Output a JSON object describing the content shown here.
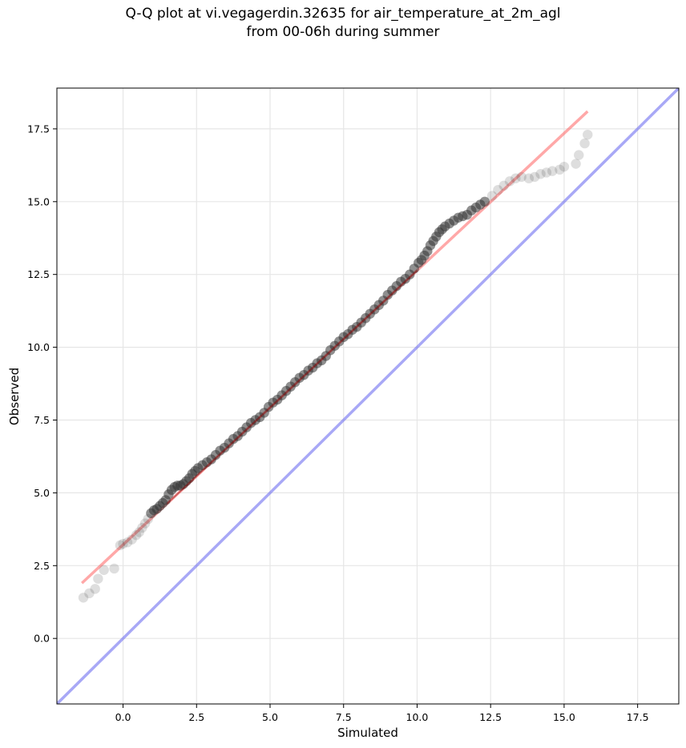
{
  "title_line1": "Q-Q plot at vi.vegagerdin.32635 for air_temperature_at_2m_agl",
  "title_line2": "from 00-06h during summer",
  "colors": {
    "points": "#333333",
    "fit_line": "#ff6060",
    "identity_line": "#6e6ef0",
    "fit_segment_dense": "#8b0000",
    "grid": "#e6e6e6"
  },
  "chart_data": {
    "type": "scatter",
    "xlabel": "Simulated",
    "ylabel": "Observed",
    "xlim": [
      -2.25,
      18.9
    ],
    "ylim": [
      -2.25,
      18.9
    ],
    "xticks": [
      0.0,
      2.5,
      5.0,
      7.5,
      10.0,
      12.5,
      15.0,
      17.5
    ],
    "yticks": [
      0.0,
      2.5,
      5.0,
      7.5,
      10.0,
      12.5,
      15.0,
      17.5
    ],
    "xtick_labels": [
      "0.0",
      "2.5",
      "5.0",
      "7.5",
      "10.0",
      "12.5",
      "15.0",
      "17.5"
    ],
    "ytick_labels": [
      "0.0",
      "2.5",
      "5.0",
      "7.5",
      "10.0",
      "12.5",
      "15.0",
      "17.5"
    ],
    "grid": true,
    "identity_line": {
      "x": [
        -2.25,
        18.9
      ],
      "y": [
        -2.25,
        18.9
      ]
    },
    "fit_line": {
      "x": [
        -1.4,
        15.8
      ],
      "y": [
        1.9,
        18.1
      ]
    },
    "points": {
      "x": [
        -1.35,
        -1.15,
        -0.95,
        -0.85,
        -0.65,
        -0.3,
        -0.1,
        0.0,
        0.15,
        0.3,
        0.45,
        0.55,
        0.65,
        0.75,
        0.85,
        0.95,
        1.05,
        1.15,
        1.25,
        1.35,
        1.45,
        1.55,
        1.65,
        1.75,
        1.85,
        1.95,
        2.05,
        2.15,
        2.25,
        2.35,
        2.45,
        2.55,
        2.7,
        2.85,
        3.0,
        3.15,
        3.3,
        3.45,
        3.6,
        3.75,
        3.9,
        4.05,
        4.2,
        4.35,
        4.5,
        4.65,
        4.8,
        4.95,
        5.1,
        5.25,
        5.4,
        5.55,
        5.7,
        5.85,
        6.0,
        6.15,
        6.3,
        6.45,
        6.6,
        6.75,
        6.9,
        7.05,
        7.2,
        7.35,
        7.5,
        7.65,
        7.8,
        7.95,
        8.1,
        8.25,
        8.4,
        8.55,
        8.7,
        8.85,
        9.0,
        9.15,
        9.3,
        9.45,
        9.6,
        9.75,
        9.9,
        10.05,
        10.15,
        10.25,
        10.35,
        10.45,
        10.55,
        10.65,
        10.75,
        10.85,
        10.95,
        11.1,
        11.25,
        11.4,
        11.55,
        11.7,
        11.85,
        12.0,
        12.15,
        12.3,
        12.55,
        12.75,
        12.95,
        13.15,
        13.35,
        13.55,
        13.8,
        14.0,
        14.2,
        14.4,
        14.6,
        14.85,
        15.0,
        15.4,
        15.5,
        15.7,
        15.8
      ],
      "y": [
        1.4,
        1.55,
        1.7,
        2.05,
        2.35,
        2.4,
        3.2,
        3.25,
        3.3,
        3.4,
        3.55,
        3.65,
        3.8,
        3.95,
        4.1,
        4.3,
        4.4,
        4.45,
        4.55,
        4.65,
        4.75,
        4.95,
        5.1,
        5.2,
        5.25,
        5.25,
        5.3,
        5.4,
        5.5,
        5.65,
        5.75,
        5.85,
        5.95,
        6.05,
        6.15,
        6.3,
        6.45,
        6.55,
        6.7,
        6.85,
        6.95,
        7.1,
        7.25,
        7.4,
        7.5,
        7.6,
        7.75,
        7.95,
        8.1,
        8.2,
        8.35,
        8.5,
        8.65,
        8.8,
        8.95,
        9.05,
        9.2,
        9.3,
        9.45,
        9.55,
        9.7,
        9.9,
        10.05,
        10.2,
        10.35,
        10.45,
        10.6,
        10.7,
        10.85,
        11.0,
        11.15,
        11.3,
        11.45,
        11.6,
        11.8,
        11.95,
        12.1,
        12.25,
        12.35,
        12.5,
        12.7,
        12.9,
        13.0,
        13.15,
        13.3,
        13.5,
        13.65,
        13.8,
        13.95,
        14.05,
        14.15,
        14.25,
        14.35,
        14.45,
        14.5,
        14.55,
        14.7,
        14.8,
        14.9,
        15.0,
        15.2,
        15.4,
        15.55,
        15.7,
        15.8,
        15.85,
        15.8,
        15.85,
        15.95,
        16.0,
        16.05,
        16.1,
        16.2,
        16.3,
        16.6,
        17.0,
        17.3
      ]
    }
  }
}
